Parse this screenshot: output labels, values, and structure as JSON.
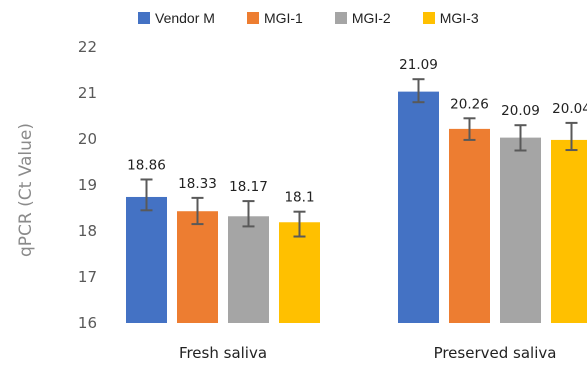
{
  "chart_data": {
    "type": "bar",
    "ylabel": "qPCR (Ct Value)",
    "xlabel": "",
    "ylim": [
      16,
      22
    ],
    "yticks": [
      "16",
      "17",
      "18",
      "19",
      "20",
      "21",
      "22"
    ],
    "grid": false,
    "legend_position": "top",
    "categories": [
      "Fresh  saliva",
      "Preserved  saliva"
    ],
    "series": [
      {
        "name": "Vendor M",
        "color": "#4472C4",
        "values": [
          18.86,
          21.09
        ],
        "labels": [
          "18.86",
          "21.09"
        ],
        "bar_values": [
          18.74,
          21.03
        ],
        "err_low": [
          18.45,
          20.8
        ],
        "err_high": [
          19.12,
          21.3
        ]
      },
      {
        "name": "MGI-1",
        "color": "#ED7D31",
        "values": [
          18.33,
          20.26
        ],
        "labels": [
          "18.33",
          "20.26"
        ],
        "bar_values": [
          18.43,
          20.22
        ],
        "err_low": [
          18.15,
          19.98
        ],
        "err_high": [
          18.72,
          20.45
        ]
      },
      {
        "name": "MGI-2",
        "color": "#A5A5A5",
        "values": [
          18.17,
          20.09
        ],
        "labels": [
          "18.17",
          "20.09"
        ],
        "bar_values": [
          18.32,
          20.03
        ],
        "err_low": [
          18.1,
          19.75
        ],
        "err_high": [
          18.65,
          20.3
        ]
      },
      {
        "name": "MGI-3",
        "color": "#FFC000",
        "values": [
          18.1,
          20.04
        ],
        "labels": [
          "18.1",
          "20.04"
        ],
        "bar_values": [
          18.19,
          19.98
        ],
        "err_low": [
          17.88,
          19.76
        ],
        "err_high": [
          18.42,
          20.35
        ]
      }
    ]
  }
}
